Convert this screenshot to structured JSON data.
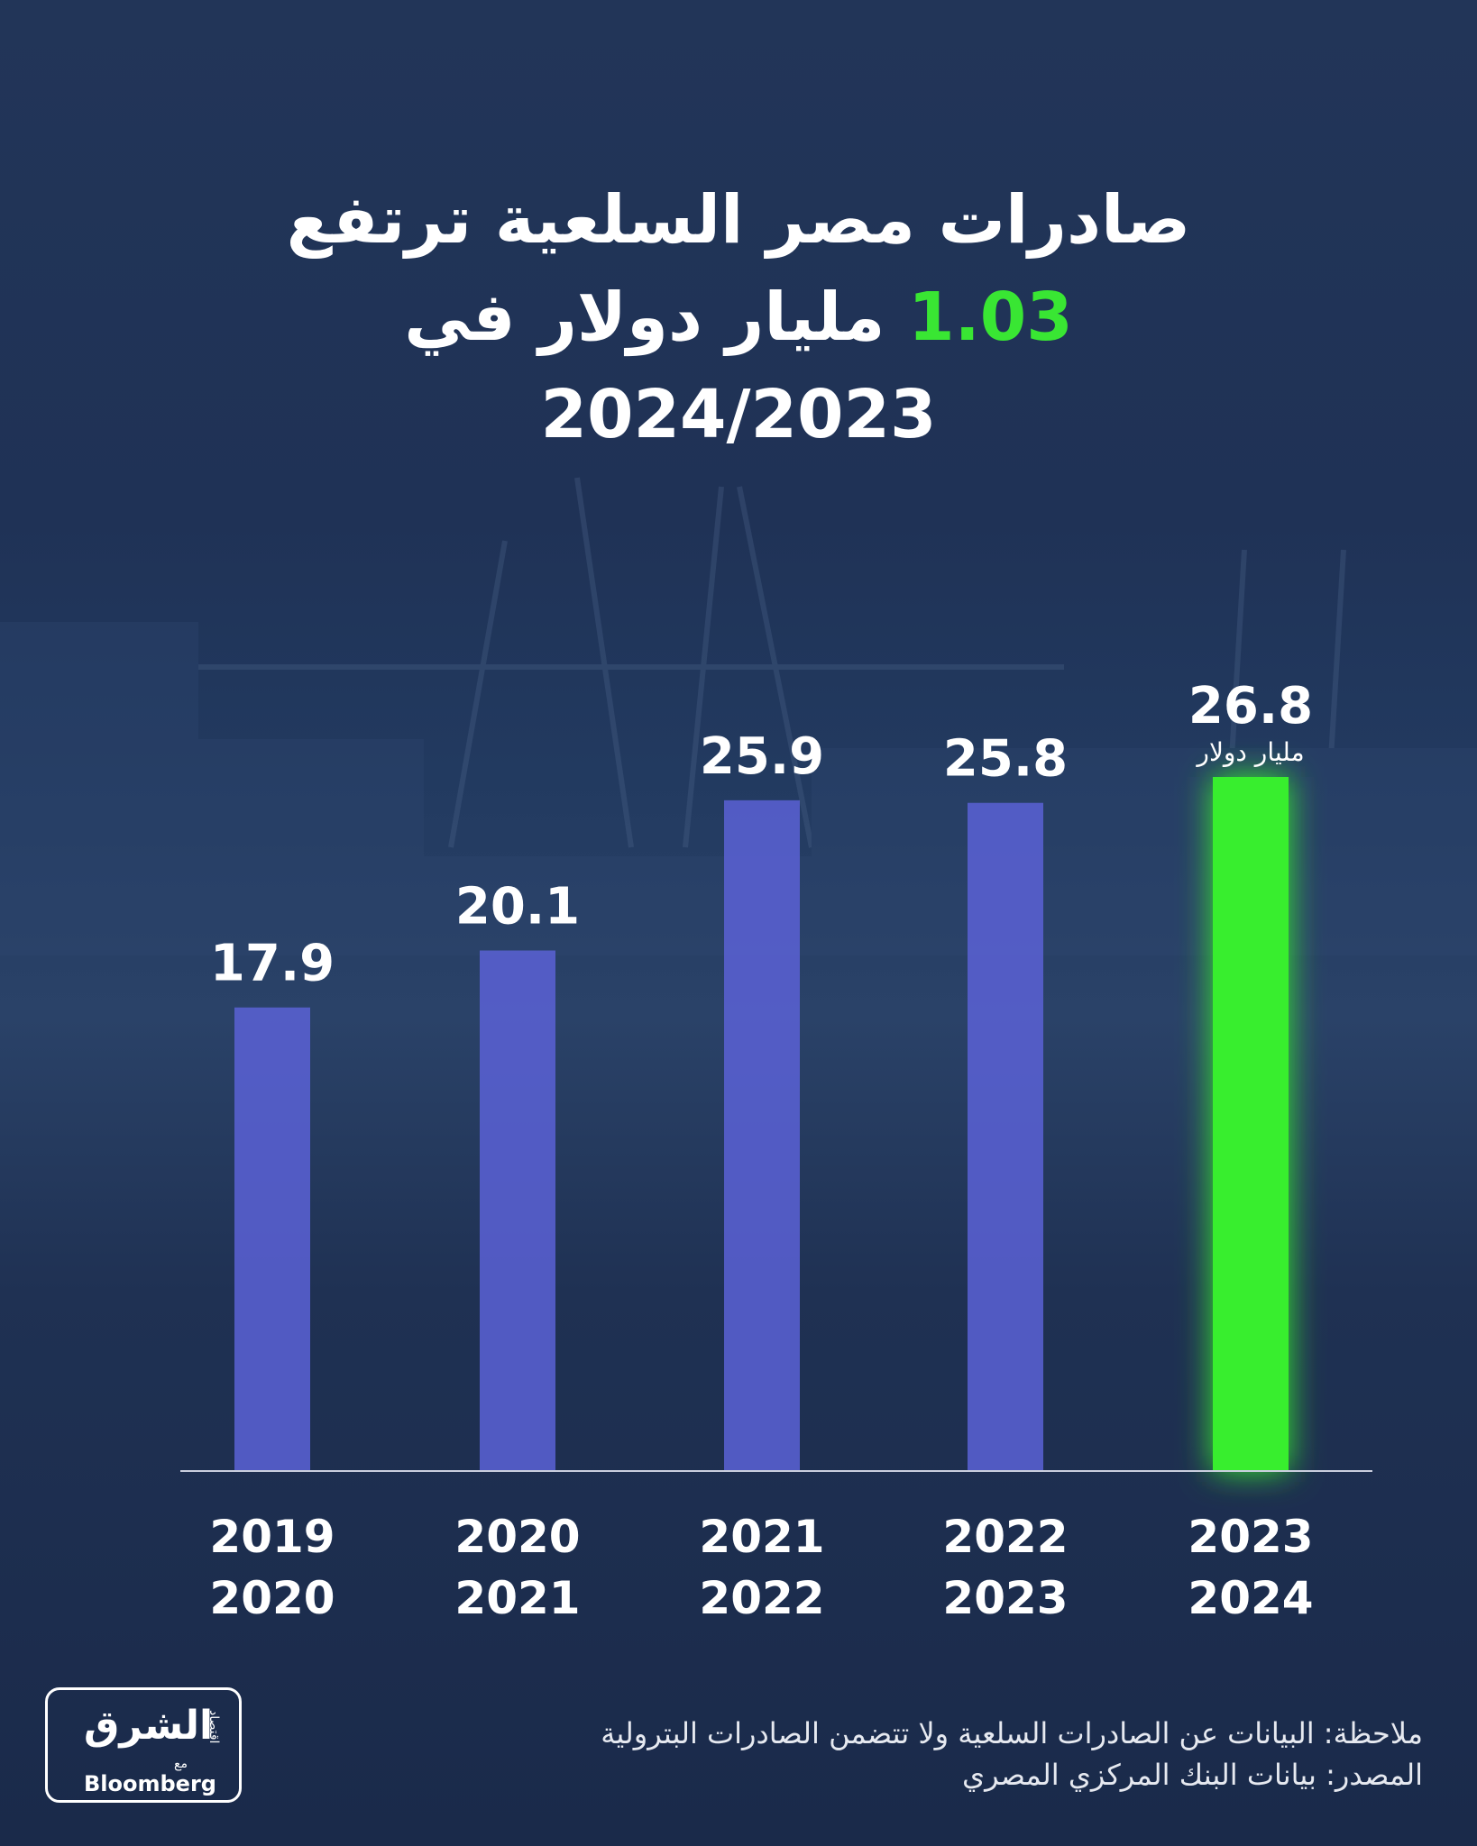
{
  "title": {
    "line1": "صادرات مصر السلعية ترتفع",
    "line2_highlight": "1.03",
    "line2_rest": " مليار دولار في",
    "line3": "2024/2023"
  },
  "colors": {
    "bar_default": "#5a62d6",
    "bar_highlight": "#39ee2f",
    "highlight_text": "#39e633",
    "axis": "#c9cede"
  },
  "chart_data": {
    "type": "bar",
    "categories": [
      [
        "2019",
        "2020"
      ],
      [
        "2020",
        "2021"
      ],
      [
        "2021",
        "2022"
      ],
      [
        "2022",
        "2023"
      ],
      [
        "2023",
        "2024"
      ]
    ],
    "values": [
      17.9,
      20.1,
      25.9,
      25.8,
      26.8
    ],
    "value_labels": [
      "17.9",
      "20.1",
      "25.9",
      "25.8",
      "26.8"
    ],
    "unit_label": "مليار دولار",
    "highlight_index": 4,
    "ylim": [
      0,
      30
    ]
  },
  "footer": {
    "note": "ملاحظة: البيانات عن الصادرات السلعية ولا تتضمن الصادرات البترولية",
    "source": "المصدر: بيانات البنك المركزي المصري"
  },
  "logo": {
    "arabic": "الشرق",
    "sub": "اقتصاد",
    "with": "مع",
    "brand": "Bloomberg"
  }
}
